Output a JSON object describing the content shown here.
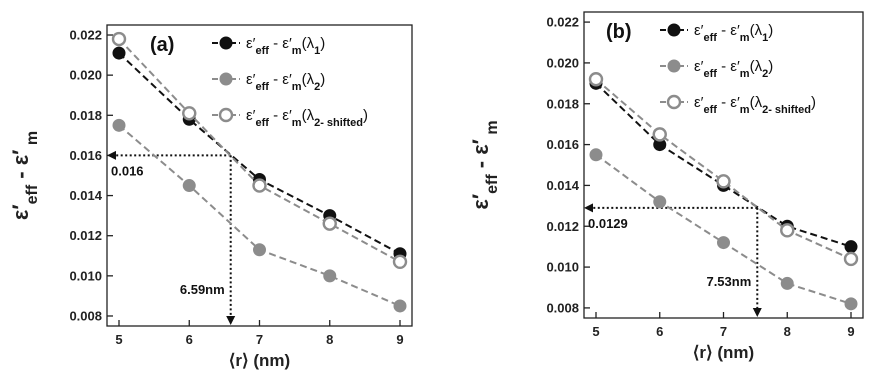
{
  "chart_data": [
    {
      "type": "line",
      "panel_label": "(a)",
      "xlabel": "⟨r⟩ (nm)",
      "ylabel": "ε′eff - ε′m",
      "xlim": [
        5,
        9
      ],
      "ylim": [
        0.008,
        0.022
      ],
      "x_ticks": [
        "5",
        "6",
        "7",
        "8",
        "9"
      ],
      "y_ticks": [
        "0.008",
        "0.010",
        "0.012",
        "0.014",
        "0.016",
        "0.018",
        "0.020",
        "0.022"
      ],
      "grid": false,
      "legend_position": "top-right",
      "series": [
        {
          "name": "ε′eff - ε′m(λ1)",
          "color": "#111111",
          "marker": "filled-circle",
          "x": [
            5,
            6,
            7,
            8,
            9
          ],
          "values": [
            0.0211,
            0.0178,
            0.0148,
            0.013,
            0.0111
          ]
        },
        {
          "name": "ε′eff - ε′m(λ2)",
          "color": "#8c8c8c",
          "marker": "filled-circle",
          "x": [
            5,
            6,
            7,
            8,
            9
          ],
          "values": [
            0.0175,
            0.0145,
            0.0113,
            0.01,
            0.0085
          ]
        },
        {
          "name": "ε′eff - ε′m(λ2- shifted)",
          "color": "#8c8c8c",
          "marker": "open-circle",
          "x": [
            5,
            6,
            7,
            8,
            9
          ],
          "values": [
            0.0218,
            0.0181,
            0.0145,
            0.0126,
            0.0107
          ]
        }
      ],
      "annotations": {
        "y_value": 0.016,
        "y_text": "0.016",
        "x_value": 6.59,
        "x_text": "6.59nm"
      }
    },
    {
      "type": "line",
      "panel_label": "(b)",
      "xlabel": "⟨r⟩ (nm)",
      "ylabel": "ε′eff - ε′m",
      "xlim": [
        5,
        9
      ],
      "ylim": [
        0.008,
        0.022
      ],
      "x_ticks": [
        "5",
        "6",
        "7",
        "8",
        "9"
      ],
      "y_ticks": [
        "0.008",
        "0.010",
        "0.012",
        "0.014",
        "0.016",
        "0.018",
        "0.020",
        "0.022"
      ],
      "grid": false,
      "legend_position": "top-right",
      "series": [
        {
          "name": "ε′eff - ε′m(λ1)",
          "color": "#111111",
          "marker": "filled-circle",
          "x": [
            5,
            6,
            7,
            8,
            9
          ],
          "values": [
            0.019,
            0.016,
            0.014,
            0.012,
            0.011
          ]
        },
        {
          "name": "ε′eff - ε′m(λ2)",
          "color": "#8c8c8c",
          "marker": "filled-circle",
          "x": [
            5,
            6,
            7,
            8,
            9
          ],
          "values": [
            0.0155,
            0.0132,
            0.0112,
            0.0092,
            0.0082
          ]
        },
        {
          "name": "ε′eff - ε′m(λ2- shifted)",
          "color": "#8c8c8c",
          "marker": "open-circle",
          "x": [
            5,
            6,
            7,
            8,
            9
          ],
          "values": [
            0.0192,
            0.0165,
            0.0142,
            0.0118,
            0.0104
          ]
        }
      ],
      "annotations": {
        "y_value": 0.0129,
        "y_text": "0.0129",
        "x_value": 7.53,
        "x_text": "7.53nm"
      }
    }
  ]
}
